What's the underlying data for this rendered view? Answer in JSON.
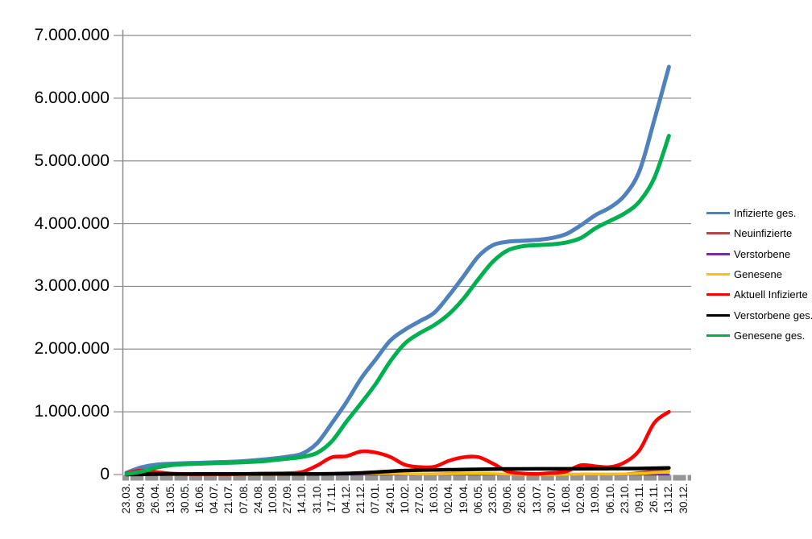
{
  "chart_data": {
    "type": "line",
    "title": "",
    "grid": true,
    "legend_position": "right",
    "categories": [
      "23.03.",
      "09.04.",
      "26.04.",
      "13.05.",
      "30.05.",
      "16.06.",
      "04.07.",
      "21.07.",
      "07.08.",
      "24.08.",
      "10.09.",
      "27.09.",
      "14.10.",
      "31.10.",
      "17.11.",
      "04.12.",
      "21.12.",
      "07.01.",
      "24.01.",
      "10.02.",
      "27.02.",
      "16.03.",
      "02.04.",
      "19.04.",
      "06.05.",
      "23.05.",
      "09.06.",
      "26.06.",
      "13.07.",
      "30.07.",
      "16.08.",
      "02.09.",
      "19.09.",
      "06.10.",
      "23.10.",
      "09.11.",
      "26.11.",
      "13.12.",
      "30.12."
    ],
    "y_axis": {
      "min": 0,
      "max": 7000000,
      "step": 1000000,
      "tick_labels": [
        "0",
        "1.000.000",
        "2.000.000",
        "3.000.000",
        "4.000.000",
        "5.000.000",
        "6.000.000",
        "7.000.000"
      ]
    },
    "series": [
      {
        "name": "Infizierte ges.",
        "color": "#4F81BD",
        "stroke_width": 5,
        "values": [
          29000,
          113000,
          156000,
          172000,
          181000,
          187000,
          196000,
          202000,
          214000,
          233000,
          256000,
          285000,
          334000,
          499000,
          815000,
          1153000,
          1530000,
          1835000,
          2137000,
          2310000,
          2444000,
          2581000,
          2855000,
          3163000,
          3477000,
          3657000,
          3712000,
          3727000,
          3741000,
          3770000,
          3835000,
          3975000,
          4138000,
          4260000,
          4456000,
          4845000,
          5650000,
          6500000,
          null
        ]
      },
      {
        "name": "Neuinfizierte",
        "color": "#B04A47",
        "stroke_width": 3,
        "values": [
          3000,
          5000,
          2000,
          900,
          500,
          350,
          400,
          400,
          900,
          1500,
          1800,
          2300,
          5000,
          15000,
          20000,
          22000,
          25000,
          20000,
          15000,
          9000,
          8000,
          12000,
          20000,
          22000,
          18000,
          9000,
          3500,
          1000,
          800,
          2500,
          5000,
          10000,
          8500,
          8000,
          12000,
          35000,
          60000,
          55000,
          null
        ]
      },
      {
        "name": "Verstorbene",
        "color": "#7030A0",
        "stroke_width": 2.5,
        "values": [
          30,
          200,
          180,
          90,
          40,
          15,
          10,
          7,
          10,
          10,
          10,
          15,
          25,
          60,
          200,
          400,
          600,
          750,
          700,
          550,
          350,
          200,
          180,
          220,
          220,
          180,
          100,
          50,
          25,
          20,
          20,
          40,
          60,
          70,
          90,
          160,
          300,
          400,
          null
        ]
      },
      {
        "name": "Genesene",
        "color": "#FFC000",
        "stroke_width": 3.5,
        "values": [
          2000,
          4000,
          3500,
          1500,
          700,
          400,
          400,
          400,
          600,
          900,
          1100,
          1400,
          2500,
          7000,
          15000,
          19000,
          20000,
          19000,
          17000,
          12000,
          8000,
          8000,
          13000,
          16000,
          17000,
          14000,
          7000,
          2500,
          1000,
          1500,
          2500,
          6000,
          7500,
          7000,
          9000,
          16000,
          30000,
          45000,
          null
        ]
      },
      {
        "name": "Aktuell Infizierte",
        "color": "#FF0000",
        "stroke_width": 4.5,
        "values": [
          20000,
          65000,
          41000,
          16000,
          8000,
          5000,
          6000,
          5000,
          9000,
          16000,
          18000,
          22000,
          43000,
          144000,
          274000,
          293000,
          368000,
          351000,
          280000,
          155000,
          120000,
          124000,
          220000,
          276000,
          279000,
          174000,
          50000,
          18000,
          10000,
          25000,
          50000,
          150000,
          132000,
          120000,
          196000,
          392000,
          824000,
          1000000,
          null
        ]
      },
      {
        "name": "Verstorbene ges.",
        "color": "#000000",
        "stroke_width": 4.5,
        "values": [
          120,
          2400,
          5900,
          7900,
          8600,
          8900,
          9100,
          9100,
          9200,
          9300,
          9300,
          9500,
          9700,
          10300,
          13000,
          18300,
          26300,
          38800,
          52100,
          63700,
          70100,
          73900,
          76900,
          80000,
          84100,
          87200,
          89500,
          90600,
          91200,
          91600,
          91900,
          92300,
          93000,
          94000,
          95100,
          96900,
          100600,
          106000,
          null
        ]
      },
      {
        "name": "Genesene ges.",
        "color": "#00B050",
        "stroke_width": 5,
        "values": [
          9000,
          46000,
          109000,
          148000,
          165000,
          174000,
          181000,
          188000,
          196000,
          208000,
          229000,
          253000,
          282000,
          345000,
          528000,
          842000,
          1136000,
          1445000,
          1807000,
          2091000,
          2254000,
          2383000,
          2559000,
          2807000,
          3114000,
          3396000,
          3573000,
          3639000,
          3657000,
          3670000,
          3700000,
          3772000,
          3928000,
          4046000,
          4166000,
          4355000,
          4726000,
          5400000,
          null
        ]
      }
    ]
  },
  "colors": {
    "background": "#FFFFFF",
    "gridline": "#8C8C8C",
    "axis_line": "#8C8C8C",
    "axis_band": "#969696",
    "text": "#000000"
  }
}
